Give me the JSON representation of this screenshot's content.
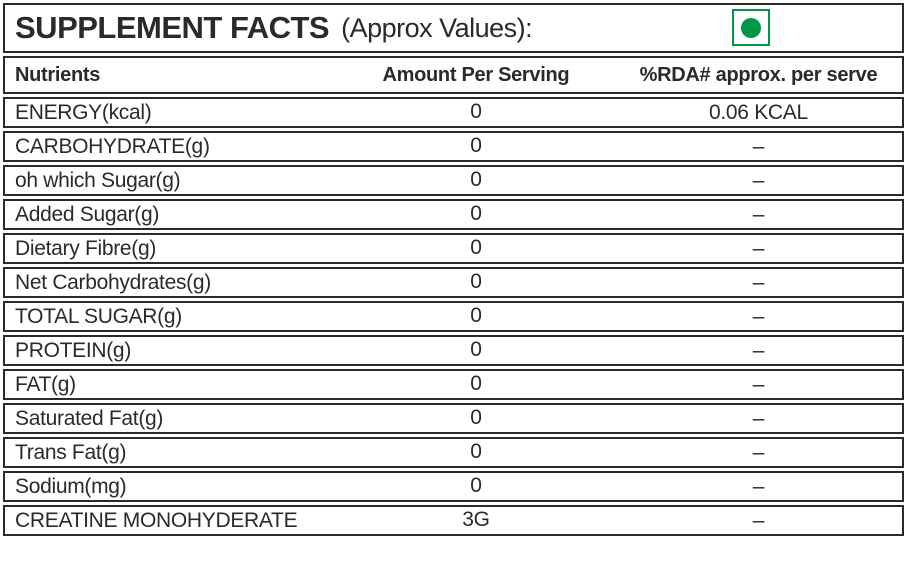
{
  "header": {
    "title": "SUPPLEMENT FACTS",
    "subtitle": "(Approx Values):",
    "veg_mark_icon": "veg-symbol-green-dot-in-square"
  },
  "table": {
    "columns": [
      "Nutrients",
      "Amount Per Serving",
      "%RDA# approx. per serve"
    ],
    "rows": [
      {
        "name": "ENERGY(kcal)",
        "amount": "0",
        "rda": "0.06 KCAL"
      },
      {
        "name": "CARBOHYDRATE(g)",
        "amount": "0",
        "rda": "–"
      },
      {
        "name": "oh which Sugar(g)",
        "amount": "0",
        "rda": "–"
      },
      {
        "name": "Added Sugar(g)",
        "amount": "0",
        "rda": "–"
      },
      {
        "name": "Dietary Fibre(g)",
        "amount": "0",
        "rda": "–"
      },
      {
        "name": "Net Carbohydrates(g)",
        "amount": "0",
        "rda": "–"
      },
      {
        "name": "TOTAL SUGAR(g)",
        "amount": "0",
        "rda": "–"
      },
      {
        "name": "PROTEIN(g)",
        "amount": "0",
        "rda": "–"
      },
      {
        "name": "FAT(g)",
        "amount": "0",
        "rda": "–"
      },
      {
        "name": "Saturated Fat(g)",
        "amount": "0",
        "rda": "–"
      },
      {
        "name": "Trans Fat(g)",
        "amount": "0",
        "rda": "–"
      },
      {
        "name": "Sodium(mg)",
        "amount": "0",
        "rda": "–"
      },
      {
        "name": "CREATINE MONOHYDERATE",
        "amount": "3G",
        "rda": "–"
      }
    ]
  },
  "colors": {
    "border": "#2b2a29",
    "text": "#2b2a29",
    "green": "#009846",
    "background": "#ffffff"
  }
}
